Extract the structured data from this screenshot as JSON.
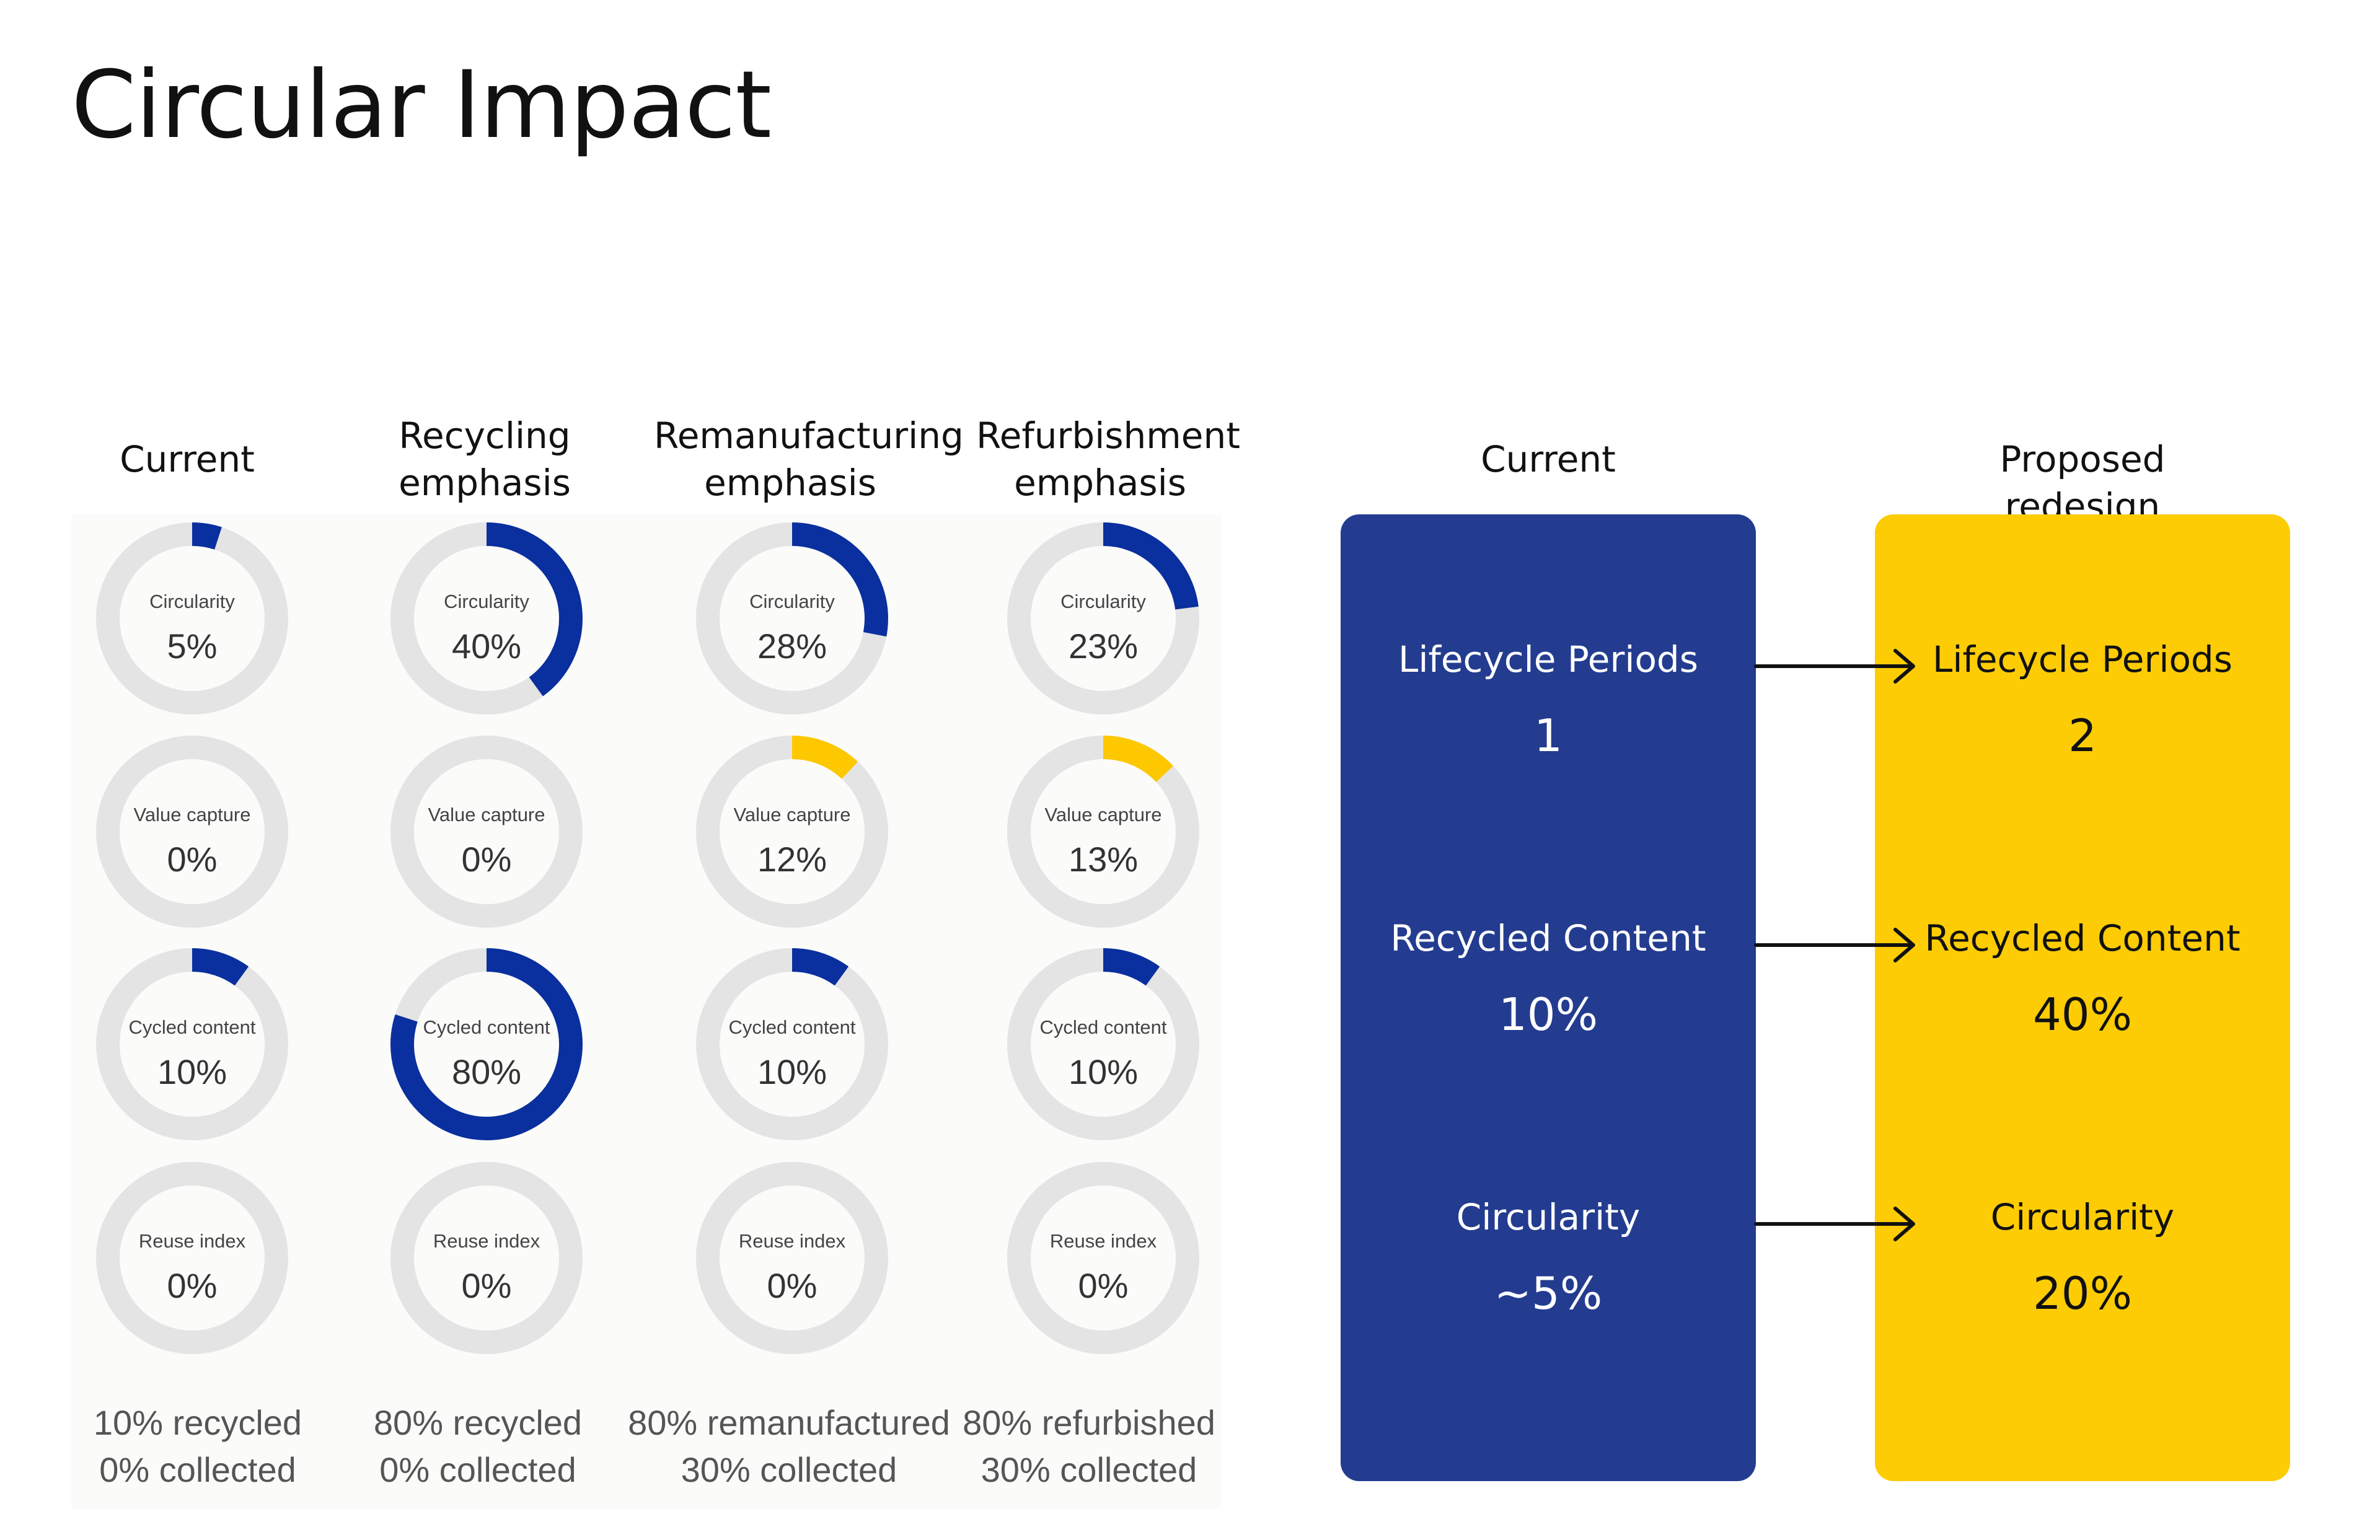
{
  "title": "Circular Impact",
  "colors": {
    "blue": "#0a2f9e",
    "yellow": "#fdc800",
    "track": "#e4e4e4",
    "card_current": "#233c90",
    "card_proposed": "#fdcc05"
  },
  "chart_data": {
    "type": "donut-grid",
    "scenarios": [
      {
        "name": "Current",
        "metrics": [
          {
            "label": "Circularity",
            "value": 5,
            "display": "5%",
            "color": "blue"
          },
          {
            "label": "Value capture",
            "value": 0,
            "display": "0%",
            "color": "yellow"
          },
          {
            "label": "Cycled content",
            "value": 10,
            "display": "10%",
            "color": "blue"
          },
          {
            "label": "Reuse index",
            "value": 0,
            "display": "0%",
            "color": "blue"
          }
        ],
        "note1": "10% recycled",
        "note2": "0% collected"
      },
      {
        "name": "Recycling emphasis",
        "metrics": [
          {
            "label": "Circularity",
            "value": 40,
            "display": "40%",
            "color": "blue"
          },
          {
            "label": "Value capture",
            "value": 0,
            "display": "0%",
            "color": "yellow"
          },
          {
            "label": "Cycled content",
            "value": 80,
            "display": "80%",
            "color": "blue"
          },
          {
            "label": "Reuse index",
            "value": 0,
            "display": "0%",
            "color": "blue"
          }
        ],
        "note1": "80% recycled",
        "note2": "0% collected"
      },
      {
        "name": "Remanufacturing emphasis",
        "metrics": [
          {
            "label": "Circularity",
            "value": 28,
            "display": "28%",
            "color": "blue"
          },
          {
            "label": "Value capture",
            "value": 12,
            "display": "12%",
            "color": "yellow"
          },
          {
            "label": "Cycled content",
            "value": 10,
            "display": "10%",
            "color": "blue"
          },
          {
            "label": "Reuse index",
            "value": 0,
            "display": "0%",
            "color": "blue"
          }
        ],
        "note1": "80% remanufactured",
        "note2": "30% collected"
      },
      {
        "name": "Refurbishment emphasis",
        "metrics": [
          {
            "label": "Circularity",
            "value": 23,
            "display": "23%",
            "color": "blue"
          },
          {
            "label": "Value capture",
            "value": 13,
            "display": "13%",
            "color": "yellow"
          },
          {
            "label": "Cycled content",
            "value": 10,
            "display": "10%",
            "color": "blue"
          },
          {
            "label": "Reuse index",
            "value": 0,
            "display": "0%",
            "color": "blue"
          }
        ],
        "note1": "80% refurbished",
        "note2": "30% collected"
      }
    ]
  },
  "comparison": {
    "current": {
      "heading": "Current",
      "items": [
        {
          "label": "Lifecycle Periods",
          "value": "1"
        },
        {
          "label": "Recycled Content",
          "value": "10%"
        },
        {
          "label": "Circularity",
          "value": "~5%"
        }
      ]
    },
    "proposed": {
      "heading": "Proposed redesign",
      "items": [
        {
          "label": "Lifecycle Periods",
          "value": "2"
        },
        {
          "label": "Recycled Content",
          "value": "40%"
        },
        {
          "label": "Circularity",
          "value": "20%"
        }
      ]
    }
  }
}
